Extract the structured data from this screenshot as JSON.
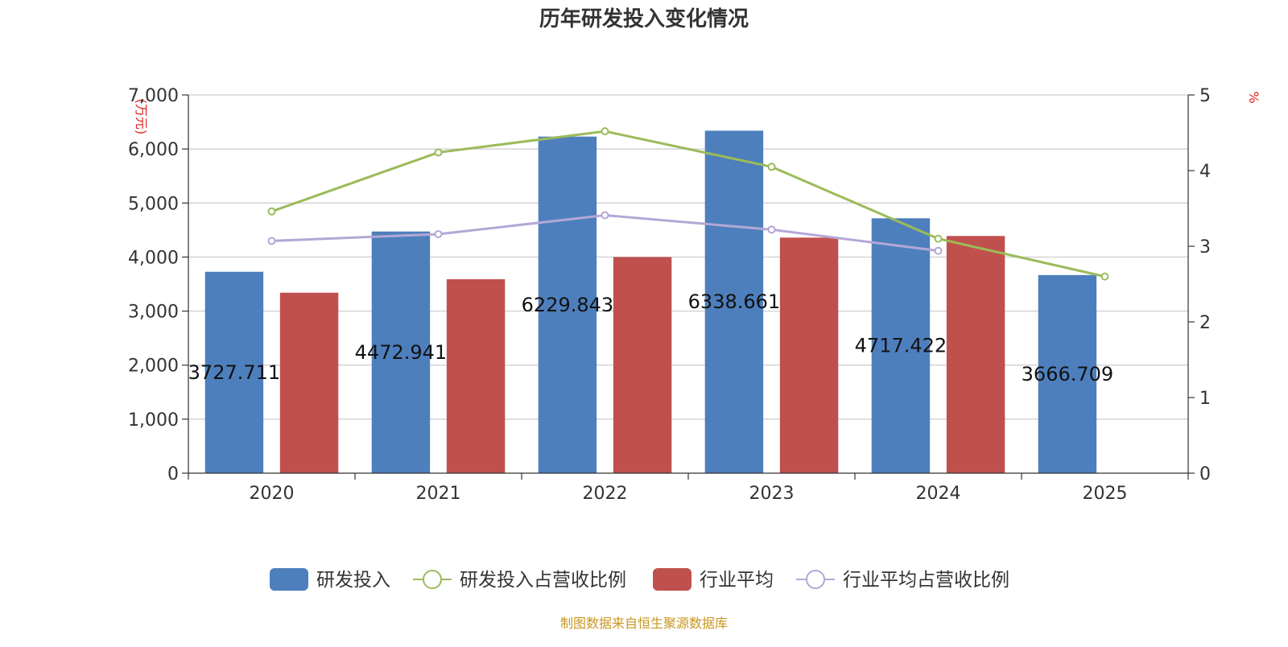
{
  "chart_data": {
    "type": "bar",
    "title": "历年研发投入变化情况",
    "y_left_unit": "(万元)",
    "y_right_unit": "%",
    "categories": [
      "2020",
      "2021",
      "2022",
      "2023",
      "2024",
      "2025"
    ],
    "y_left_ticks": [
      "0",
      "1,000",
      "2,000",
      "3,000",
      "4,000",
      "5,000",
      "6,000",
      "7,000"
    ],
    "y_right_ticks": [
      "0",
      "1",
      "2",
      "3",
      "4",
      "5"
    ],
    "ylim_left": [
      0,
      7000
    ],
    "ylim_right": [
      0,
      5
    ],
    "grid": true,
    "legend_position": "bottom",
    "series": [
      {
        "name": "研发投入",
        "kind": "bar",
        "axis": "left",
        "color": "#4e7fbd",
        "values": [
          3727.711,
          4472.941,
          6229.843,
          6338.661,
          4717.422,
          3666.709
        ],
        "labels": [
          "3727.711",
          "4472.941",
          "6229.843",
          "6338.661",
          "4717.422",
          "3666.709"
        ]
      },
      {
        "name": "研发投入占营收比例",
        "kind": "line",
        "axis": "right",
        "color": "#9bbb59",
        "values": [
          3.46,
          4.24,
          4.52,
          4.05,
          3.1,
          2.6
        ]
      },
      {
        "name": "行业平均",
        "kind": "bar",
        "axis": "left",
        "color": "#c0504d",
        "values": [
          3340,
          3590,
          4000,
          4360,
          4390,
          null
        ]
      },
      {
        "name": "行业平均占营收比例",
        "kind": "line",
        "axis": "right",
        "color": "#b4a7d6",
        "values": [
          3.07,
          3.16,
          3.41,
          3.22,
          2.94,
          null
        ]
      }
    ]
  },
  "footer": {
    "source": "制图数据来自恒生聚源数据库",
    "source_color": "#c8961e"
  }
}
